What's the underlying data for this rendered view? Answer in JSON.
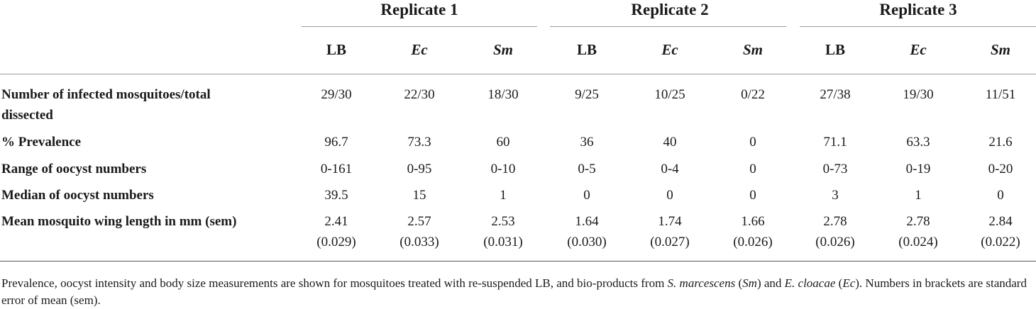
{
  "replicates": [
    "Replicate 1",
    "Replicate 2",
    "Replicate 3"
  ],
  "subheaders": [
    {
      "label": "LB",
      "italic": false
    },
    {
      "label": "Ec",
      "italic": true
    },
    {
      "label": "Sm",
      "italic": true
    },
    {
      "label": "LB",
      "italic": false
    },
    {
      "label": "Ec",
      "italic": true
    },
    {
      "label": "Sm",
      "italic": true
    },
    {
      "label": "LB",
      "italic": false
    },
    {
      "label": "Ec",
      "italic": true
    },
    {
      "label": "Sm",
      "italic": true
    }
  ],
  "rows": [
    {
      "label": [
        "Number of infected mosquitoes/total",
        "dissected"
      ],
      "cells": [
        [
          "29/30"
        ],
        [
          "22/30"
        ],
        [
          "18/30"
        ],
        [
          "9/25"
        ],
        [
          "10/25"
        ],
        [
          "0/22"
        ],
        [
          "27/38"
        ],
        [
          "19/30"
        ],
        [
          "11/51"
        ]
      ]
    },
    {
      "label": [
        "% Prevalence"
      ],
      "cells": [
        [
          "96.7"
        ],
        [
          "73.3"
        ],
        [
          "60"
        ],
        [
          "36"
        ],
        [
          "40"
        ],
        [
          "0"
        ],
        [
          "71.1"
        ],
        [
          "63.3"
        ],
        [
          "21.6"
        ]
      ]
    },
    {
      "label": [
        "Range of oocyst numbers"
      ],
      "cells": [
        [
          "0-161"
        ],
        [
          "0-95"
        ],
        [
          "0-10"
        ],
        [
          "0-5"
        ],
        [
          "0-4"
        ],
        [
          "0"
        ],
        [
          "0-73"
        ],
        [
          "0-19"
        ],
        [
          "0-20"
        ]
      ]
    },
    {
      "label": [
        "Median of oocyst numbers"
      ],
      "cells": [
        [
          "39.5"
        ],
        [
          "15"
        ],
        [
          "1"
        ],
        [
          "0"
        ],
        [
          "0"
        ],
        [
          "0"
        ],
        [
          "3"
        ],
        [
          "1"
        ],
        [
          "0"
        ]
      ]
    },
    {
      "label": [
        "Mean mosquito wing length in mm (sem)"
      ],
      "cells": [
        [
          "2.41",
          "(0.029)"
        ],
        [
          "2.57",
          "(0.033)"
        ],
        [
          "2.53",
          "(0.031)"
        ],
        [
          "1.64",
          "(0.030)"
        ],
        [
          "1.74",
          "(0.027)"
        ],
        [
          "1.66",
          "(0.026)"
        ],
        [
          "2.78",
          "(0.026)"
        ],
        [
          "2.78",
          "(0.024)"
        ],
        [
          "2.84",
          "(0.022)"
        ]
      ]
    }
  ],
  "footnote": {
    "p1": "Prevalence, oocyst intensity and body size measurements are shown for mosquitoes treated with re-suspended LB, and bio-products from ",
    "sm_name": "S. marcescens",
    "p2": " (",
    "sm_abbr": "Sm",
    "p3": ") and ",
    "ec_name": "E. cloacae",
    "p4": " (",
    "ec_abbr": "Ec",
    "p5": "). Numbers in brackets are standard error of mean (sem)."
  }
}
